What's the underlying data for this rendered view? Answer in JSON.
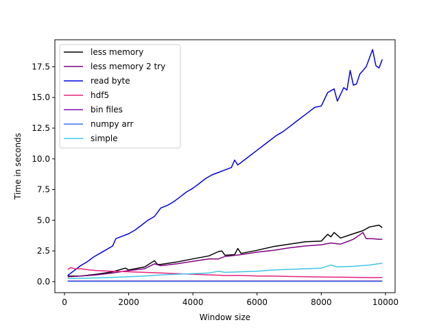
{
  "chart_data": {
    "type": "line",
    "xlabel": "Window size",
    "ylabel": "Time in seconds",
    "xlim": [
      -300,
      10300
    ],
    "ylim": [
      -0.9,
      19.7
    ],
    "xticks": [
      0,
      2000,
      4000,
      6000,
      8000,
      10000
    ],
    "xtick_labels": [
      "0",
      "2000",
      "4000",
      "6000",
      "8000",
      "10000"
    ],
    "yticks": [
      0.0,
      2.5,
      5.0,
      7.5,
      10.0,
      12.5,
      15.0,
      17.5
    ],
    "ytick_labels": [
      "0.0",
      "2.5",
      "5.0",
      "7.5",
      "10.0",
      "12.5",
      "15.0",
      "17.5"
    ],
    "grid": false,
    "legend_position": "upper-left",
    "series": [
      {
        "name": "less memory",
        "color": "#000000",
        "x": [
          100,
          500,
          1000,
          1500,
          1900,
          2000,
          2500,
          2800,
          2900,
          3000,
          3500,
          4000,
          4500,
          4800,
          4900,
          5000,
          5300,
          5400,
          5500,
          6000,
          6500,
          7000,
          7500,
          8000,
          8200,
          8300,
          8400,
          8600,
          9000,
          9300,
          9500,
          9800,
          9900
        ],
        "y": [
          0.45,
          0.45,
          0.6,
          0.8,
          1.1,
          0.95,
          1.2,
          1.7,
          1.4,
          1.4,
          1.6,
          1.85,
          2.1,
          2.45,
          2.5,
          2.15,
          2.2,
          2.7,
          2.3,
          2.55,
          2.85,
          3.05,
          3.25,
          3.3,
          3.85,
          3.65,
          4.0,
          3.55,
          3.9,
          4.15,
          4.45,
          4.6,
          4.4
        ]
      },
      {
        "name": "less memory 2 try",
        "color": "#800080",
        "x": [
          100,
          500,
          1000,
          1500,
          2000,
          2500,
          2800,
          3000,
          3500,
          4000,
          4500,
          4800,
          5000,
          5500,
          6000,
          6500,
          7000,
          7500,
          8000,
          8300,
          8600,
          9000,
          9300,
          9400,
          9600,
          9800,
          9900
        ],
        "y": [
          0.4,
          0.45,
          0.55,
          0.7,
          0.9,
          1.05,
          1.45,
          1.3,
          1.45,
          1.65,
          1.85,
          1.85,
          2.05,
          2.2,
          2.4,
          2.55,
          2.75,
          2.9,
          3.0,
          3.15,
          3.05,
          3.45,
          4.0,
          3.5,
          3.5,
          3.45,
          3.45
        ]
      },
      {
        "name": "read byte",
        "color": "#0000dd",
        "x": [
          100,
          300,
          500,
          700,
          900,
          1100,
          1300,
          1500,
          1600,
          1800,
          2000,
          2200,
          2400,
          2600,
          2800,
          3000,
          3200,
          3400,
          3600,
          3800,
          4000,
          4200,
          4400,
          4600,
          4800,
          5000,
          5200,
          5300,
          5400,
          5600,
          5800,
          6000,
          6200,
          6400,
          6600,
          6800,
          7000,
          7200,
          7400,
          7600,
          7800,
          8000,
          8200,
          8400,
          8500,
          8700,
          8800,
          8900,
          9000,
          9100,
          9200,
          9400,
          9600,
          9700,
          9800,
          9900
        ],
        "y": [
          0.5,
          0.9,
          1.3,
          1.6,
          2.0,
          2.3,
          2.6,
          2.9,
          3.5,
          3.7,
          3.9,
          4.2,
          4.6,
          5.0,
          5.3,
          6.0,
          6.2,
          6.5,
          6.9,
          7.3,
          7.6,
          8.0,
          8.4,
          8.7,
          8.9,
          9.1,
          9.3,
          9.9,
          9.5,
          9.9,
          10.3,
          10.7,
          11.1,
          11.5,
          11.9,
          12.2,
          12.6,
          13.0,
          13.4,
          13.8,
          14.2,
          14.3,
          15.4,
          15.7,
          14.7,
          15.8,
          15.6,
          17.2,
          16.0,
          16.1,
          16.9,
          17.5,
          18.9,
          17.6,
          17.4,
          18.1
        ]
      },
      {
        "name": "hdf5",
        "color": "#e8207a",
        "x": [
          100,
          200,
          300,
          500,
          800,
          1000,
          1500,
          2000,
          2500,
          3000,
          3500,
          4000,
          4500,
          5000,
          5500,
          6000,
          6500,
          7000,
          7500,
          8000,
          8500,
          9000,
          9500,
          9800,
          9900
        ],
        "y": [
          1.0,
          1.15,
          1.05,
          1.05,
          0.95,
          0.9,
          0.85,
          0.8,
          0.75,
          0.7,
          0.65,
          0.6,
          0.55,
          0.5,
          0.5,
          0.45,
          0.45,
          0.42,
          0.4,
          0.38,
          0.36,
          0.35,
          0.33,
          0.33,
          0.35
        ]
      },
      {
        "name": "bin files",
        "color": "#7b0fb5",
        "x": [
          100,
          1000,
          2000,
          3000,
          4000,
          5000,
          6000,
          7000,
          8000,
          9000,
          9900
        ],
        "y": [
          0.05,
          0.05,
          0.05,
          0.05,
          0.05,
          0.05,
          0.05,
          0.05,
          0.05,
          0.05,
          0.05
        ]
      },
      {
        "name": "numpy arr",
        "color": "#3a6ff0",
        "x": [
          100,
          1000,
          2000,
          3000,
          4000,
          5000,
          6000,
          7000,
          8000,
          9000,
          9900
        ],
        "y": [
          0.02,
          0.02,
          0.02,
          0.02,
          0.02,
          0.02,
          0.02,
          0.02,
          0.02,
          0.02,
          0.02
        ]
      },
      {
        "name": "simple",
        "color": "#3ec5e6",
        "x": [
          100,
          500,
          1000,
          1500,
          2000,
          2500,
          3000,
          3500,
          4000,
          4500,
          4800,
          5000,
          5500,
          6000,
          6500,
          7000,
          7500,
          8000,
          8300,
          8500,
          9000,
          9500,
          9900
        ],
        "y": [
          0.25,
          0.27,
          0.3,
          0.35,
          0.4,
          0.45,
          0.55,
          0.6,
          0.65,
          0.7,
          0.85,
          0.75,
          0.8,
          0.85,
          0.95,
          1.0,
          1.05,
          1.1,
          1.35,
          1.2,
          1.25,
          1.35,
          1.5
        ]
      }
    ]
  }
}
